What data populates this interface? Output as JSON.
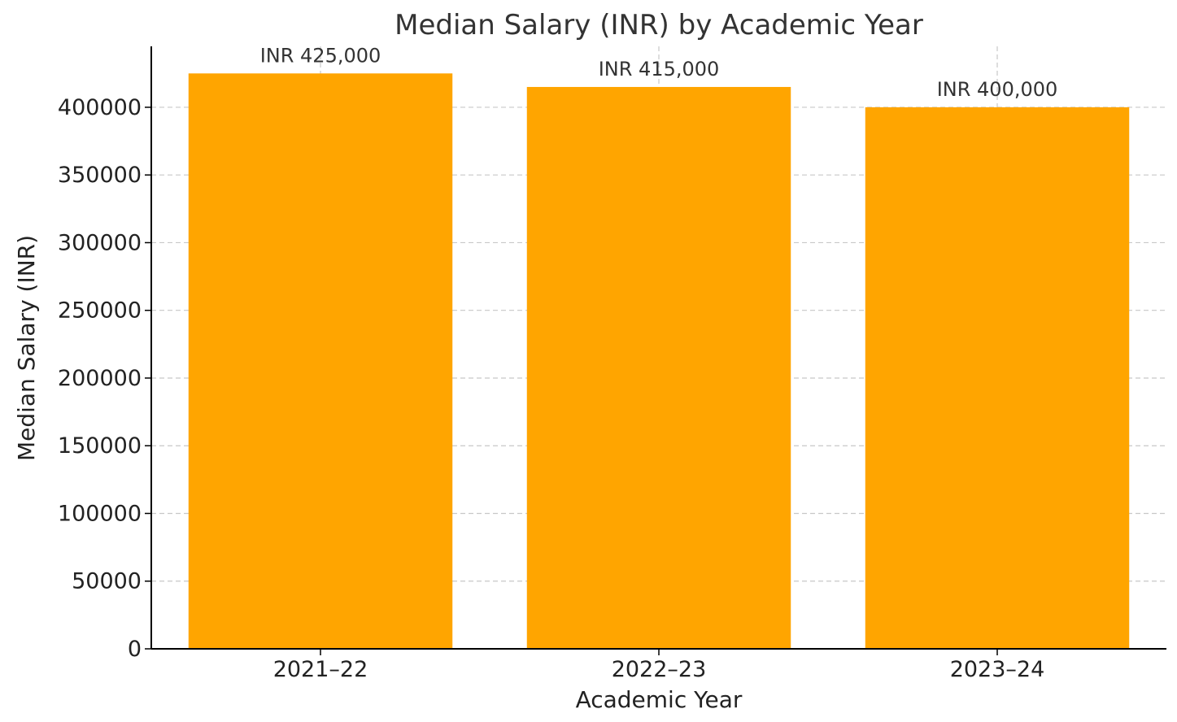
{
  "chart_data": {
    "type": "bar",
    "title": "Median Salary (INR) by Academic Year",
    "xlabel": "Academic Year",
    "ylabel": "Median Salary (INR)",
    "categories": [
      "2021–22",
      "2022–23",
      "2023–24"
    ],
    "values": [
      425000,
      415000,
      400000
    ],
    "data_labels": [
      "INR 425,000",
      "INR 415,000",
      "INR 400,000"
    ],
    "ylim": [
      0,
      445000
    ],
    "yticks": [
      0,
      50000,
      100000,
      150000,
      200000,
      250000,
      300000,
      350000,
      400000
    ],
    "ytick_labels": [
      "0",
      "50000",
      "100000",
      "150000",
      "200000",
      "250000",
      "300000",
      "350000",
      "400000"
    ],
    "grid": true,
    "legend": "none",
    "bar_color": "#FFA500"
  }
}
